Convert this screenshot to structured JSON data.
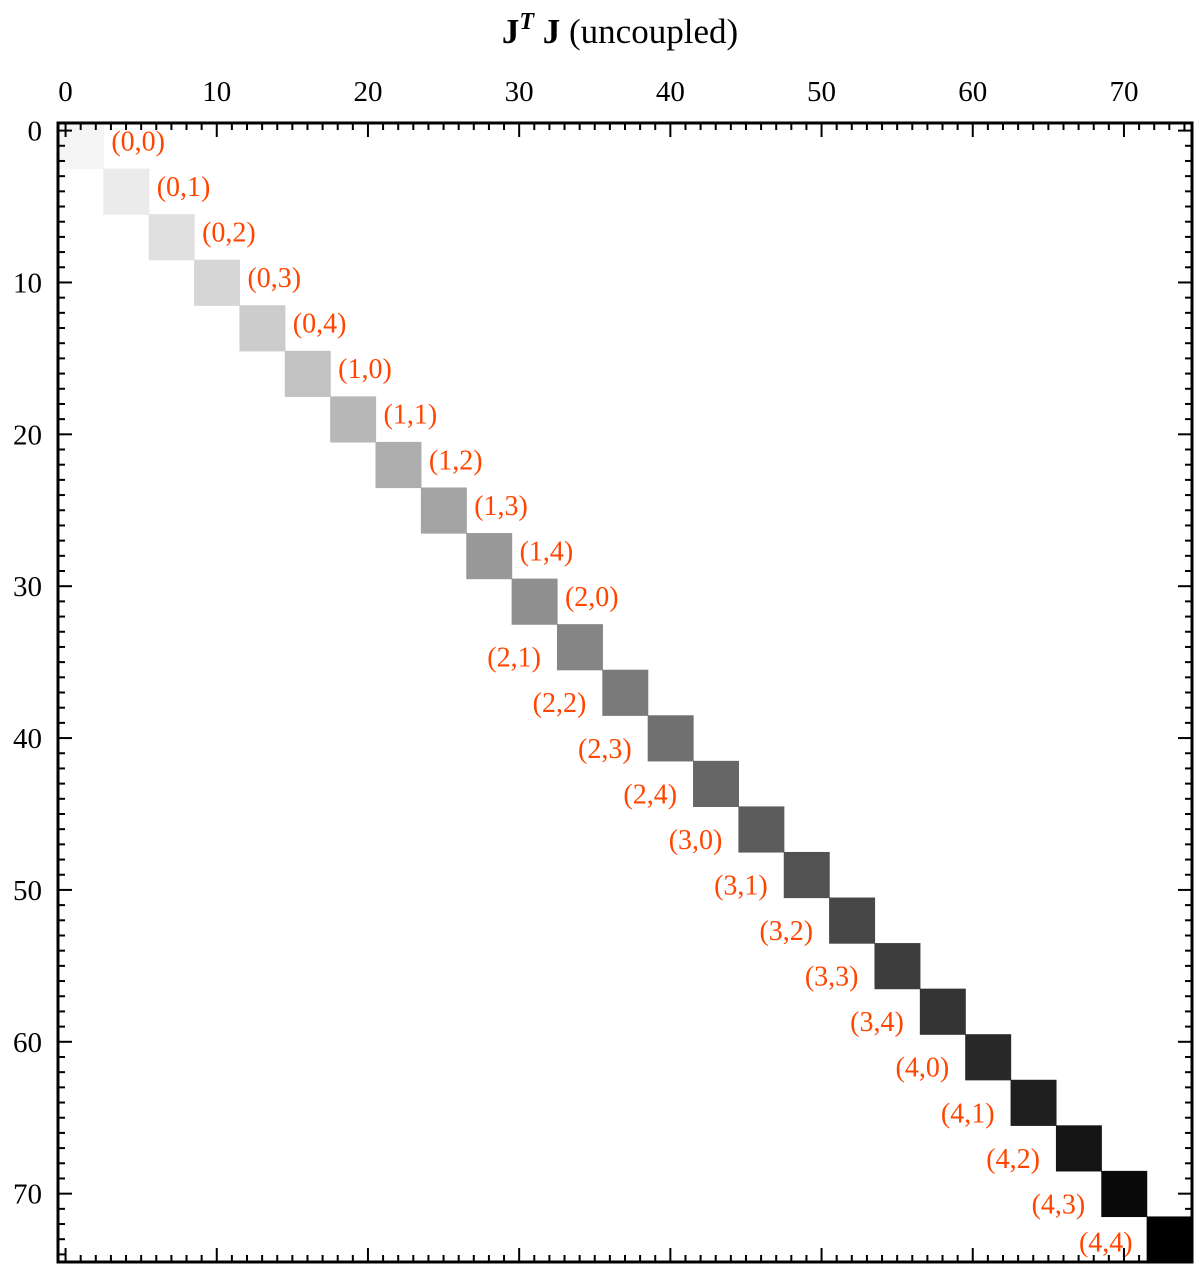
{
  "chart_data": {
    "type": "heatmap",
    "title": {
      "matrix": "J",
      "superscript": "T",
      "matrix2": "J",
      "suffix": "(uncoupled)"
    },
    "xlabel": "",
    "ylabel": "",
    "matrix_size": 75,
    "x_ticks": [
      0,
      10,
      20,
      30,
      40,
      50,
      60,
      70
    ],
    "y_ticks": [
      0,
      10,
      20,
      30,
      40,
      50,
      60,
      70
    ],
    "xlim": [
      -0.5,
      74.5
    ],
    "ylim": [
      74.5,
      -0.5
    ],
    "block_size": 3,
    "label_color": "#ff4500",
    "blocks": [
      {
        "label": "(0,0)",
        "start": 0,
        "value": 1
      },
      {
        "label": "(0,1)",
        "start": 3,
        "value": 2
      },
      {
        "label": "(0,2)",
        "start": 6,
        "value": 3
      },
      {
        "label": "(0,3)",
        "start": 9,
        "value": 4
      },
      {
        "label": "(0,4)",
        "start": 12,
        "value": 5
      },
      {
        "label": "(1,0)",
        "start": 15,
        "value": 6
      },
      {
        "label": "(1,1)",
        "start": 18,
        "value": 7
      },
      {
        "label": "(1,2)",
        "start": 21,
        "value": 8
      },
      {
        "label": "(1,3)",
        "start": 24,
        "value": 9
      },
      {
        "label": "(1,4)",
        "start": 27,
        "value": 10
      },
      {
        "label": "(2,0)",
        "start": 30,
        "value": 11
      },
      {
        "label": "(2,1)",
        "start": 33,
        "value": 12
      },
      {
        "label": "(2,2)",
        "start": 36,
        "value": 13
      },
      {
        "label": "(2,3)",
        "start": 39,
        "value": 14
      },
      {
        "label": "(2,4)",
        "start": 42,
        "value": 15
      },
      {
        "label": "(3,0)",
        "start": 45,
        "value": 16
      },
      {
        "label": "(3,1)",
        "start": 48,
        "value": 17
      },
      {
        "label": "(3,2)",
        "start": 51,
        "value": 18
      },
      {
        "label": "(3,3)",
        "start": 54,
        "value": 19
      },
      {
        "label": "(3,4)",
        "start": 57,
        "value": 20
      },
      {
        "label": "(4,0)",
        "start": 60,
        "value": 21
      },
      {
        "label": "(4,1)",
        "start": 63,
        "value": 22
      },
      {
        "label": "(4,2)",
        "start": 66,
        "value": 23
      },
      {
        "label": "(4,3)",
        "start": 69,
        "value": 24
      },
      {
        "label": "(4,4)",
        "start": 72,
        "value": 25
      }
    ],
    "colormap": "grayscale-increasing-dark"
  }
}
